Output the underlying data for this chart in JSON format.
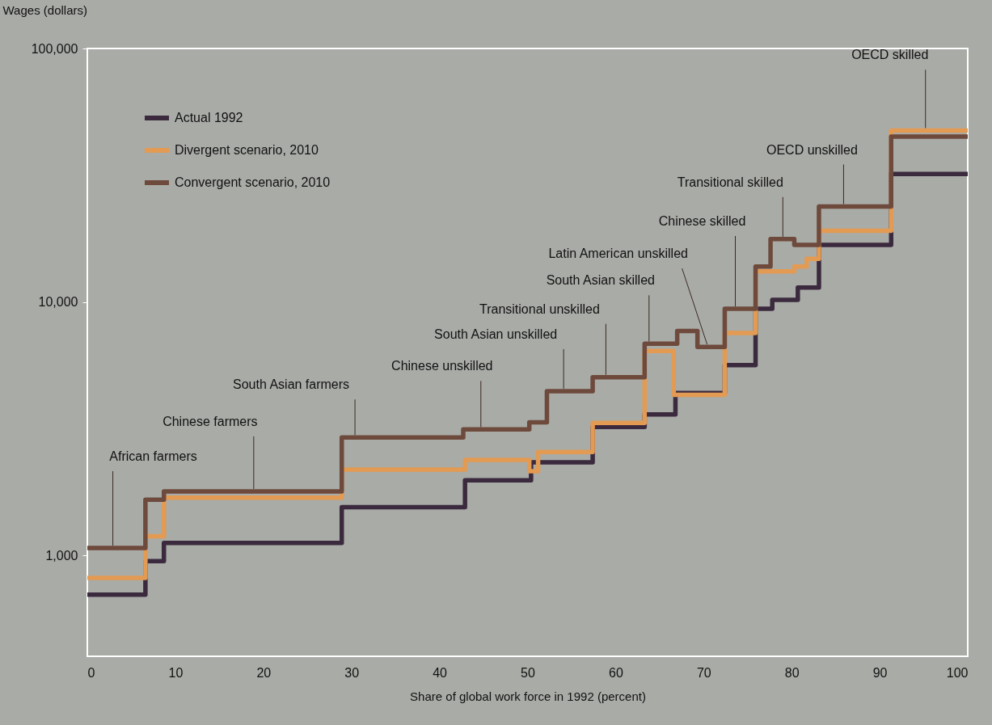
{
  "chart_data": {
    "type": "step",
    "xlabel": "Share of global work force in 1992 (percent)",
    "ylabel": "Wages (dollars)",
    "xlim": [
      0,
      100
    ],
    "xticks": [
      0,
      10,
      20,
      30,
      40,
      50,
      60,
      70,
      80,
      90,
      100
    ],
    "ylim": [
      400,
      100000
    ],
    "yticks": [
      {
        "value": 1000,
        "label": "1,000"
      },
      {
        "value": 10000,
        "label": "10,000"
      },
      {
        "value": 100000,
        "label": "100,000"
      }
    ],
    "log": "y",
    "legend": "top left",
    "series": [
      {
        "name": "Actual 1992",
        "color": "#3b2a3e",
        "x": [
          0,
          6.6,
          8.7,
          28.9,
          42.9,
          50.4,
          57.4,
          63.3,
          66.8,
          72.4,
          75.9,
          77.8,
          80.7,
          83.1,
          91.3,
          100
        ],
        "values": [
          700,
          950,
          1120,
          1550,
          1980,
          2330,
          3210,
          3600,
          4370,
          5630,
          9400,
          10200,
          11400,
          16800,
          32000,
          32000
        ]
      },
      {
        "name": "Divergent scenario, 2010",
        "color": "#e39a52",
        "x": [
          0,
          6.6,
          8.7,
          28.9,
          42.9,
          50.2,
          51.2,
          57.4,
          63.3,
          66.6,
          72.4,
          75.9,
          80.3,
          81.7,
          83.1,
          91.3,
          100
        ],
        "values": [
          815,
          1190,
          1690,
          2180,
          2380,
          2150,
          2560,
          3330,
          6410,
          4300,
          7540,
          13200,
          13800,
          14800,
          19100,
          47500,
          47500
        ]
      },
      {
        "name": "Convergent scenario, 2010",
        "color": "#6e4a3c",
        "x": [
          0,
          6.6,
          8.7,
          28.9,
          42.7,
          50.2,
          52.2,
          57.4,
          63.3,
          67,
          69.3,
          72.4,
          75.9,
          77.6,
          80.3,
          83.1,
          91.3,
          100
        ],
        "values": [
          1070,
          1660,
          1790,
          2920,
          3140,
          3350,
          4450,
          5050,
          6840,
          7690,
          6650,
          9400,
          13800,
          17700,
          16800,
          23800,
          44900,
          44900
        ]
      }
    ],
    "annotations": [
      {
        "text": "African farmers",
        "x": 2.9,
        "y": 1070
      },
      {
        "text": "Chinese farmers",
        "x": 18.9,
        "y": 1790
      },
      {
        "text": "South Asian farmers",
        "x": 30.4,
        "y": 2920
      },
      {
        "text": "Chinese unskilled",
        "x": 44.7,
        "y": 3140
      },
      {
        "text": "South Asian unskilled",
        "x": 54.1,
        "y": 4450
      },
      {
        "text": "Transitional unskilled",
        "x": 58.9,
        "y": 5050
      },
      {
        "text": "South Asian skilled",
        "x": 63.8,
        "y": 6840
      },
      {
        "text": "Latin American unskilled",
        "x": 70.4,
        "y": 6650
      },
      {
        "text": "Chinese skilled",
        "x": 73.6,
        "y": 9400
      },
      {
        "text": "Transitional skilled",
        "x": 79,
        "y": 17700
      },
      {
        "text": "OECD unskilled",
        "x": 85.9,
        "y": 23800
      },
      {
        "text": "OECD skilled",
        "x": 95.2,
        "y": 47500
      }
    ]
  }
}
